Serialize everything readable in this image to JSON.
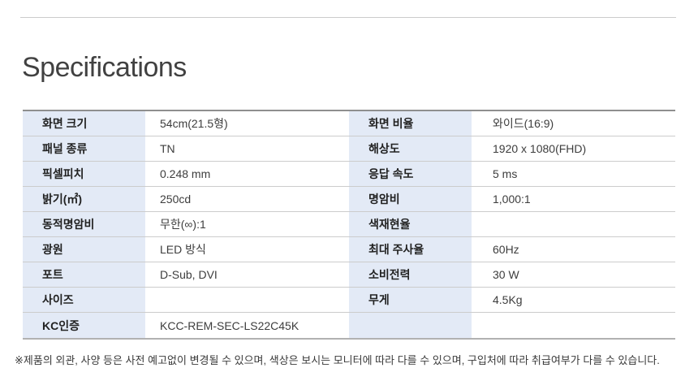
{
  "page": {
    "title": "Specifications"
  },
  "colors": {
    "label_cell_bg": "#e3eaf6",
    "row_border": "#cccccc",
    "table_top_border": "#8f8f8f",
    "table_bottom_border": "#b1b1b1",
    "top_hairline": "#cccccc",
    "label_text": "#222222",
    "value_text": "#3d3d3d"
  },
  "spec_table": {
    "rows": [
      {
        "label1": "화면 크기",
        "value1": "54cm(21.5형)",
        "label2": "화면 비율",
        "value2": "와이드(16:9)"
      },
      {
        "label1": "패널 종류",
        "value1": "TN",
        "label2": "해상도",
        "value2": "1920 x 1080(FHD)"
      },
      {
        "label1": "픽셀피치",
        "value1": "0.248 mm",
        "label2": "응답 속도",
        "value2": "5 ms"
      },
      {
        "label1": "밝기(㎡)",
        "value1": "250cd",
        "label2": "명암비",
        "value2": "1,000:1"
      },
      {
        "label1": "동적명암비",
        "value1": "무한(∞):1",
        "label2": "색재현율",
        "value2": ""
      },
      {
        "label1": "광원",
        "value1": "LED 방식",
        "label2": "최대 주사율",
        "value2": "60Hz"
      },
      {
        "label1": "포트",
        "value1": "D-Sub, DVI",
        "label2": "소비전력",
        "value2": "30 W"
      },
      {
        "label1": "사이즈",
        "value1": "",
        "label2": "무게",
        "value2": "4.5Kg"
      },
      {
        "label1": "KC인증",
        "value1": "KCC-REM-SEC-LS22C45K",
        "label2": "",
        "value2": ""
      }
    ]
  },
  "footnote": "※제품의 외관, 사양 등은 사전 예고없이 변경될 수 있으며, 색상은 보시는 모니터에 따라 다를 수 있으며, 구입처에 따라 취급여부가 다를 수 있습니다."
}
